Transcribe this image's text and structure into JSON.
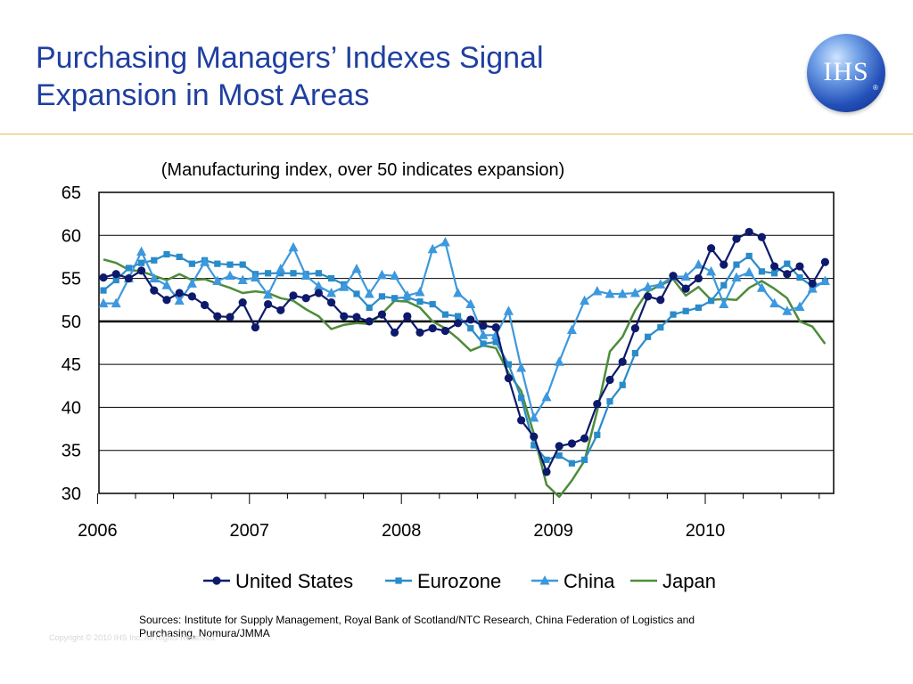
{
  "slide": {
    "title_line1": "Purchasing Managers’ Indexes Signal",
    "title_line2": "Expansion in Most Areas",
    "logo_text": "IHS",
    "logo_reg": "®",
    "sources": "Sources:  Institute for Supply Management, Royal Bank of Scotland/NTC Research, China Federation of Logistics and Purchasing, Nomura/JMMA",
    "copyright": "Copyright © 2010 IHS Inc. All Rights Reserved.",
    "colors": {
      "title": "#1f3fa0",
      "rule": "#e6b84a"
    }
  },
  "chart_data": {
    "type": "line",
    "title": "(Manufacturing index, over 50 indicates expansion)",
    "xlabel": "",
    "ylabel": "",
    "ylim": [
      30,
      65
    ],
    "yticks": [
      30,
      35,
      40,
      45,
      50,
      55,
      60,
      65
    ],
    "xlim": [
      "2006-01",
      "2010-10"
    ],
    "xtick_labels": [
      "2006",
      "2007",
      "2008",
      "2009",
      "2010"
    ],
    "reference_line": 50,
    "grid": true,
    "legend_position": "bottom",
    "x": [
      "2006-01",
      "2006-02",
      "2006-03",
      "2006-04",
      "2006-05",
      "2006-06",
      "2006-07",
      "2006-08",
      "2006-09",
      "2006-10",
      "2006-11",
      "2006-12",
      "2007-01",
      "2007-02",
      "2007-03",
      "2007-04",
      "2007-05",
      "2007-06",
      "2007-07",
      "2007-08",
      "2007-09",
      "2007-10",
      "2007-11",
      "2007-12",
      "2008-01",
      "2008-02",
      "2008-03",
      "2008-04",
      "2008-05",
      "2008-06",
      "2008-07",
      "2008-08",
      "2008-09",
      "2008-10",
      "2008-11",
      "2008-12",
      "2009-01",
      "2009-02",
      "2009-03",
      "2009-04",
      "2009-05",
      "2009-06",
      "2009-07",
      "2009-08",
      "2009-09",
      "2009-10",
      "2009-11",
      "2009-12",
      "2010-01",
      "2010-02",
      "2010-03",
      "2010-04",
      "2010-05",
      "2010-06",
      "2010-07",
      "2010-08",
      "2010-09",
      "2010-10"
    ],
    "series": [
      {
        "name": "United States",
        "color": "#0d1a6b",
        "marker": "circle",
        "values": [
          55.1,
          55.5,
          55.0,
          55.9,
          53.6,
          52.5,
          53.3,
          52.9,
          51.9,
          50.6,
          50.5,
          52.2,
          49.3,
          52.0,
          51.3,
          53.0,
          52.7,
          53.3,
          52.2,
          50.6,
          50.5,
          50.0,
          50.8,
          48.7,
          50.6,
          48.7,
          49.2,
          48.9,
          49.8,
          50.2,
          49.5,
          49.3,
          43.4,
          38.5,
          36.6,
          32.5,
          35.5,
          35.8,
          36.4,
          40.4,
          43.2,
          45.3,
          49.2,
          52.9,
          52.5,
          55.3,
          53.8,
          55.0,
          58.5,
          56.6,
          59.6,
          60.4,
          59.8,
          56.4,
          55.5,
          56.4,
          54.4,
          56.9
        ]
      },
      {
        "name": "Eurozone",
        "color": "#2a8bc9",
        "marker": "square",
        "values": [
          53.6,
          54.8,
          56.2,
          56.8,
          57.1,
          57.8,
          57.5,
          56.7,
          57.1,
          56.7,
          56.6,
          56.6,
          55.5,
          55.6,
          55.6,
          55.6,
          55.5,
          55.6,
          55.0,
          54.3,
          53.2,
          51.6,
          52.9,
          52.7,
          52.8,
          52.3,
          52.0,
          50.8,
          50.6,
          49.2,
          47.4,
          47.6,
          45.0,
          41.1,
          35.6,
          33.9,
          34.4,
          33.5,
          33.9,
          36.8,
          40.7,
          42.6,
          46.3,
          48.2,
          49.3,
          50.8,
          51.2,
          51.6,
          52.4,
          54.2,
          56.6,
          57.6,
          55.8,
          55.6,
          56.7,
          55.1,
          54.1,
          54.6
        ]
      },
      {
        "name": "China",
        "color": "#3d98dd",
        "marker": "triangle",
        "values": [
          52.1,
          52.1,
          55.0,
          58.1,
          55.0,
          54.2,
          52.4,
          54.4,
          56.9,
          54.7,
          55.3,
          54.8,
          55.1,
          53.1,
          56.1,
          58.6,
          55.3,
          54.1,
          53.3,
          54.0,
          56.1,
          53.2,
          55.4,
          55.3,
          53.0,
          53.4,
          58.4,
          59.2,
          53.3,
          52.0,
          48.4,
          48.4,
          51.2,
          44.6,
          38.8,
          41.2,
          45.3,
          49.0,
          52.4,
          53.5,
          53.2,
          53.2,
          53.3,
          54.0,
          54.3,
          55.2,
          55.2,
          56.6,
          55.8,
          52.0,
          55.1,
          55.7,
          53.9,
          52.1,
          51.2,
          51.7,
          53.8,
          54.7
        ]
      },
      {
        "name": "Japan",
        "color": "#4e8c3a",
        "marker": "none",
        "values": [
          57.2,
          56.8,
          56.0,
          55.8,
          55.3,
          54.8,
          55.5,
          54.8,
          54.9,
          54.4,
          53.9,
          53.3,
          53.5,
          53.3,
          52.7,
          52.4,
          51.4,
          50.6,
          49.1,
          49.6,
          49.8,
          49.7,
          50.9,
          52.4,
          52.3,
          51.6,
          50.0,
          49.2,
          48.0,
          46.6,
          47.2,
          46.9,
          44.0,
          41.9,
          36.9,
          31.0,
          29.6,
          31.5,
          33.8,
          39.6,
          46.5,
          48.2,
          51.3,
          53.5,
          54.2,
          54.9,
          53.0,
          54.0,
          52.5,
          52.6,
          52.5,
          53.9,
          54.7,
          53.8,
          52.7,
          50.0,
          49.4,
          47.4
        ]
      }
    ]
  }
}
